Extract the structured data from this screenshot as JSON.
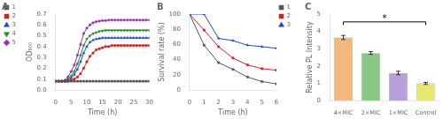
{
  "chart_data": [
    {
      "type": "line",
      "title": "A",
      "xlabel": "Time (h)",
      "ylabel": "OD₆₀₀",
      "x": [
        0,
        1,
        2,
        3,
        4,
        5,
        6,
        7,
        8,
        9,
        10,
        11,
        12,
        13,
        14,
        15,
        16,
        17,
        18,
        19,
        20,
        21,
        22,
        23,
        24,
        25,
        26,
        27,
        28,
        29,
        30
      ],
      "xlim": [
        0,
        30
      ],
      "xticks": [
        0,
        5,
        10,
        15,
        20,
        25,
        30
      ],
      "ylim": [
        0.0,
        0.7
      ],
      "yticks": [
        {
          "value": 0.0,
          "label": "0.0"
        },
        0.1,
        0.2,
        0.3,
        0.4,
        0.5,
        0.6,
        0.7
      ],
      "grid": false,
      "legend": "upper left",
      "series": [
        {
          "name": "1",
          "color": "#555555",
          "marker": "square",
          "values": [
            0.08,
            0.08,
            0.08,
            0.08,
            0.08,
            0.08,
            0.08,
            0.08,
            0.08,
            0.08,
            0.08,
            0.08,
            0.08,
            0.08,
            0.08,
            0.08,
            0.08,
            0.08,
            0.08,
            0.08,
            0.08,
            0.08,
            0.08,
            0.08,
            0.08,
            0.08,
            0.08,
            0.08,
            0.08,
            0.08,
            0.08
          ]
        },
        {
          "name": "2",
          "color": "#cc2222",
          "marker": "square",
          "values": [
            0.08,
            0.08,
            0.08,
            0.08,
            0.08,
            0.09,
            0.1,
            0.12,
            0.15,
            0.2,
            0.26,
            0.31,
            0.34,
            0.37,
            0.38,
            0.39,
            0.4,
            0.4,
            0.41,
            0.41,
            0.41,
            0.41,
            0.41,
            0.41,
            0.41,
            0.41,
            0.41,
            0.41,
            0.41,
            0.41,
            0.41
          ]
        },
        {
          "name": "3",
          "color": "#2244cc",
          "marker": "triangle_up",
          "values": [
            0.08,
            0.08,
            0.08,
            0.08,
            0.09,
            0.11,
            0.14,
            0.19,
            0.26,
            0.34,
            0.4,
            0.44,
            0.46,
            0.47,
            0.475,
            0.48,
            0.48,
            0.48,
            0.48,
            0.48,
            0.48,
            0.48,
            0.48,
            0.48,
            0.48,
            0.48,
            0.48,
            0.48,
            0.48,
            0.48,
            0.48
          ]
        },
        {
          "name": "4",
          "color": "#228822",
          "marker": "triangle_down",
          "values": [
            0.08,
            0.08,
            0.08,
            0.08,
            0.1,
            0.13,
            0.17,
            0.24,
            0.32,
            0.41,
            0.47,
            0.5,
            0.52,
            0.53,
            0.54,
            0.545,
            0.55,
            0.55,
            0.55,
            0.55,
            0.55,
            0.55,
            0.55,
            0.55,
            0.55,
            0.55,
            0.55,
            0.55,
            0.55,
            0.55,
            0.55
          ]
        },
        {
          "name": "5",
          "color": "#9933aa",
          "marker": "diamond",
          "values": [
            0.08,
            0.08,
            0.08,
            0.09,
            0.12,
            0.17,
            0.23,
            0.32,
            0.42,
            0.52,
            0.57,
            0.6,
            0.62,
            0.63,
            0.635,
            0.64,
            0.64,
            0.645,
            0.645,
            0.645,
            0.645,
            0.645,
            0.645,
            0.645,
            0.645,
            0.645,
            0.645,
            0.645,
            0.645,
            0.645,
            0.645
          ]
        }
      ]
    },
    {
      "type": "line",
      "title": "B",
      "xlabel": "Time (h)",
      "ylabel": "Survival rate (%)",
      "x": [
        0,
        1,
        2,
        3,
        4,
        5,
        6
      ],
      "xlim": [
        0,
        6
      ],
      "xticks": [
        0,
        1,
        2,
        3,
        4,
        5,
        6
      ],
      "ylim": [
        0,
        100
      ],
      "yticks": [
        0,
        20,
        40,
        60,
        80,
        100
      ],
      "grid": false,
      "legend": "upper right",
      "series": [
        {
          "name": "1",
          "color": "#555555",
          "marker": "square",
          "values": [
            100,
            59,
            36,
            27,
            17,
            11,
            8
          ]
        },
        {
          "name": "2",
          "color": "#cc2222",
          "marker": "square",
          "values": [
            100,
            79,
            57,
            42,
            33,
            28,
            26
          ]
        },
        {
          "name": "3",
          "color": "#2244cc",
          "marker": "triangle_up",
          "values": [
            100,
            100,
            68,
            65,
            59,
            57,
            55
          ]
        }
      ]
    },
    {
      "type": "bar",
      "title": "C",
      "ylabel": "Relative PL Intensity",
      "categories": [
        "4×MIC",
        "2×MIC",
        "1×MIC",
        "Control"
      ],
      "values": [
        3.65,
        2.75,
        1.6,
        1.0
      ],
      "errors": [
        0.12,
        0.08,
        0.1,
        0.06
      ],
      "colors": [
        "#f4b87c",
        "#88c988",
        "#b8a0d8",
        "#e8e870"
      ],
      "ylim": [
        0,
        5
      ],
      "yticks": [
        0,
        1,
        2,
        3,
        4,
        5
      ],
      "grid": false,
      "annotations": [
        {
          "type": "bracket",
          "from": "4×MIC",
          "to": "Control",
          "y": 4.55,
          "drop": 0.18,
          "label": "*"
        }
      ]
    }
  ]
}
